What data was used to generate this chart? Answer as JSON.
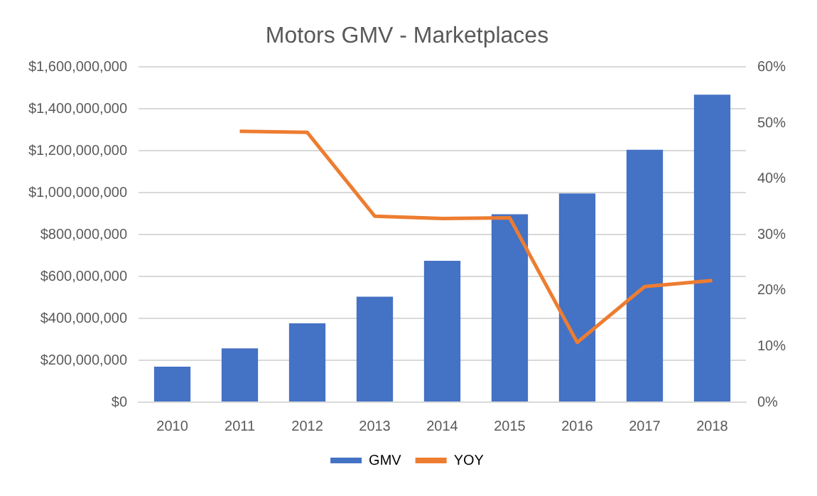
{
  "chart_data": {
    "type": "bar",
    "title": "Motors GMV - Marketplaces",
    "categories": [
      "2010",
      "2011",
      "2012",
      "2013",
      "2014",
      "2015",
      "2016",
      "2017",
      "2018"
    ],
    "series": [
      {
        "name": "GMV",
        "color": "#4472c4",
        "values": [
          170000000,
          257000000,
          377000000,
          504000000,
          675000000,
          897000000,
          997000000,
          1205000000,
          1468000000
        ]
      },
      {
        "name": "YOY",
        "type": "line",
        "axis": "y2",
        "color": "#ed7d31",
        "marker": "none",
        "values": [
          null,
          48.5,
          48.3,
          33.3,
          32.9,
          33.0,
          10.7,
          20.7,
          21.8
        ]
      }
    ],
    "ylim": [
      0,
      1600000000
    ],
    "yticks": [
      {
        "value": 0,
        "label": "$0"
      },
      {
        "value": 200000000,
        "label": "$200,000,000"
      },
      {
        "value": 400000000,
        "label": "$400,000,000"
      },
      {
        "value": 600000000,
        "label": "$600,000,000"
      },
      {
        "value": 800000000,
        "label": "$800,000,000"
      },
      {
        "value": 1000000000,
        "label": "$1,000,000,000"
      },
      {
        "value": 1200000000,
        "label": "$1,200,000,000"
      },
      {
        "value": 1400000000,
        "label": "$1,400,000,000"
      },
      {
        "value": 1600000000,
        "label": "$1,600,000,000"
      }
    ],
    "y2lim": [
      0,
      60
    ],
    "y2ticks": [
      {
        "value": 0,
        "label": "0%"
      },
      {
        "value": 10,
        "label": "10%"
      },
      {
        "value": 20,
        "label": "20%"
      },
      {
        "value": 30,
        "label": "30%"
      },
      {
        "value": 40,
        "label": "40%"
      },
      {
        "value": 50,
        "label": "50%"
      },
      {
        "value": 60,
        "label": "60%"
      }
    ],
    "grid": "y",
    "legend": "bottom"
  }
}
